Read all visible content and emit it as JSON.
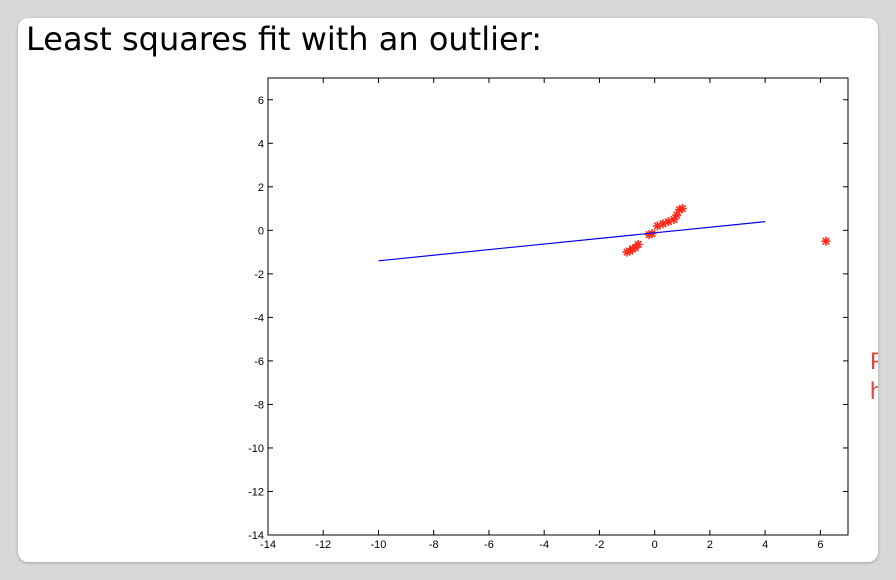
{
  "slide": {
    "title": "Least squares fit with an outlier:",
    "cut_text": [
      "P",
      "h"
    ]
  },
  "colors": {
    "points": "#ff2a1a",
    "fit_line": "#0000ee",
    "cut_text": "#e0463a",
    "axes": "#000000"
  },
  "chart_data": {
    "type": "scatter",
    "title": "",
    "xlabel": "",
    "ylabel": "",
    "xlim": [
      -14,
      7
    ],
    "ylim": [
      -14,
      7
    ],
    "x_ticks": [
      -14,
      -12,
      -10,
      -8,
      -6,
      -4,
      -2,
      0,
      2,
      4,
      6
    ],
    "y_ticks": [
      -14,
      -12,
      -10,
      -8,
      -6,
      -4,
      -2,
      0,
      2,
      4,
      6
    ],
    "grid": false,
    "series": [
      {
        "kind": "points",
        "marker": "*",
        "x": [
          -1.0,
          -0.9,
          -0.8,
          -0.7,
          -0.6,
          -0.2,
          -0.1,
          0.1,
          0.3,
          0.5,
          0.7,
          0.8,
          0.9,
          1.0,
          6.2
        ],
        "y": [
          -1.0,
          -0.95,
          -0.85,
          -0.8,
          -0.65,
          -0.2,
          -0.15,
          0.2,
          0.3,
          0.4,
          0.5,
          0.7,
          0.95,
          1.0,
          -0.5
        ]
      },
      {
        "kind": "line",
        "x": [
          -10,
          4
        ],
        "y": [
          -1.4,
          0.4
        ]
      }
    ]
  }
}
